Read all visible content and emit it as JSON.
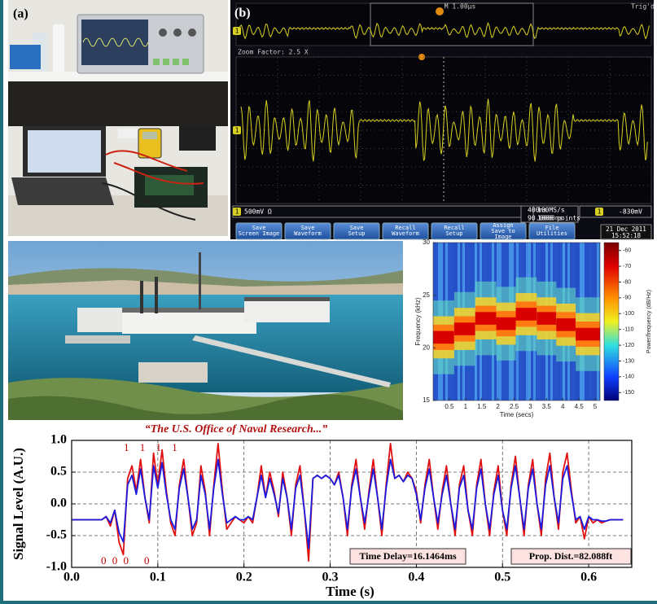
{
  "panel_a": {
    "label": "(a)"
  },
  "scope": {
    "label": "(b)",
    "timebase": "M 1.00µs",
    "trigger": "Trig'd",
    "channel": "1",
    "zoom": "Zoom Factor: 2.5 X",
    "volts": "500mV Ω",
    "zoom_time": "400ns",
    "delay": "90.0000ns",
    "rate": "100MS/s",
    "points": "1000 points",
    "trig_level": "-830mV",
    "buttons": [
      [
        "Save",
        "Screen Image"
      ],
      [
        "Save",
        "Waveform"
      ],
      [
        "Save",
        "Setup"
      ],
      [
        "Recall",
        "Waveform"
      ],
      [
        "Recall",
        "Setup"
      ],
      [
        "Assign",
        "Save to",
        "Image"
      ],
      [
        "File",
        "Utilities"
      ]
    ],
    "date": "21 Dec 2011",
    "time": "15:52:18"
  },
  "chart_data": [
    {
      "type": "spectrogram",
      "xlabel": "Time (secs)",
      "ylabel": "Frequency (kHz)",
      "colorbar_label": "Power/frequency (dB/Hz)",
      "xlim": [
        0,
        5.15
      ],
      "xticks": [
        0.5,
        1,
        1.5,
        2,
        2.5,
        3,
        3.5,
        4,
        4.5,
        5
      ],
      "ylim": [
        15,
        30
      ],
      "yticks": [
        15,
        20,
        25,
        30
      ],
      "clim": [
        -155,
        -55
      ],
      "cticks": [
        -60,
        -70,
        -80,
        -90,
        -100,
        -110,
        -120,
        -130,
        -140,
        -150
      ]
    },
    {
      "type": "line",
      "title": "“The U.S. Office of Naval Research...”",
      "xlabel": "Time (s)",
      "ylabel": "Signal Level (A.U.)",
      "xlim": [
        0,
        0.65
      ],
      "ylim": [
        -1,
        1
      ],
      "xticks": [
        {
          "value": 0,
          "label": "0.0"
        },
        0.1,
        0.2,
        0.3,
        0.4,
        0.5,
        0.6
      ],
      "yticks": [
        {
          "value": -1,
          "label": "-1.0"
        },
        -0.5,
        {
          "value": 0,
          "label": "0.0"
        },
        0.5,
        {
          "value": 1,
          "label": "1.0"
        }
      ],
      "grid": true,
      "annotations": [
        "1 1 1 1",
        "0 0 0",
        "0",
        "Time Delay=16.1464ms",
        "Prop. Dist.=82.088ft"
      ],
      "x": [
        0,
        0.005,
        0.01,
        0.015,
        0.02,
        0.025,
        0.03,
        0.035,
        0.04,
        0.045,
        0.05,
        0.055,
        0.06,
        0.065,
        0.07,
        0.075,
        0.08,
        0.085,
        0.09,
        0.095,
        0.1,
        0.105,
        0.11,
        0.115,
        0.12,
        0.125,
        0.13,
        0.135,
        0.14,
        0.145,
        0.15,
        0.155,
        0.16,
        0.165,
        0.17,
        0.175,
        0.18,
        0.185,
        0.19,
        0.195,
        0.2,
        0.205,
        0.21,
        0.215,
        0.22,
        0.225,
        0.23,
        0.235,
        0.24,
        0.245,
        0.25,
        0.255,
        0.26,
        0.265,
        0.27,
        0.275,
        0.28,
        0.285,
        0.29,
        0.295,
        0.3,
        0.305,
        0.31,
        0.315,
        0.32,
        0.325,
        0.33,
        0.335,
        0.34,
        0.345,
        0.35,
        0.355,
        0.36,
        0.365,
        0.37,
        0.375,
        0.38,
        0.385,
        0.39,
        0.395,
        0.4,
        0.405,
        0.41,
        0.415,
        0.42,
        0.425,
        0.43,
        0.435,
        0.44,
        0.445,
        0.45,
        0.455,
        0.46,
        0.465,
        0.47,
        0.475,
        0.48,
        0.485,
        0.49,
        0.495,
        0.5,
        0.505,
        0.51,
        0.515,
        0.52,
        0.525,
        0.53,
        0.535,
        0.54,
        0.545,
        0.55,
        0.555,
        0.56,
        0.565,
        0.57,
        0.575,
        0.58,
        0.585,
        0.59,
        0.595,
        0.6,
        0.605,
        0.61,
        0.615,
        0.62,
        0.625,
        0.63,
        0.635,
        0.64
      ],
      "series": [
        {
          "color": "#e01010",
          "values": [
            -0.25,
            -0.25,
            -0.25,
            -0.25,
            -0.25,
            -0.25,
            -0.25,
            -0.25,
            -0.2,
            -0.35,
            -0.1,
            -0.6,
            -0.8,
            0.4,
            0.6,
            0.2,
            0.7,
            0.1,
            -0.3,
            0.8,
            0.3,
            0.85,
            0.2,
            -0.3,
            -0.5,
            0.3,
            0.7,
            0.1,
            -0.5,
            -0.3,
            0.6,
            0.2,
            -0.5,
            0.3,
            0.95,
            0.2,
            -0.4,
            -0.3,
            -0.2,
            -0.25,
            -0.3,
            -0.2,
            -0.3,
            0.1,
            0.6,
            0.1,
            0.5,
            0.2,
            -0.2,
            0.5,
            0.1,
            -0.5,
            0.3,
            0.6,
            -0.1,
            -0.9,
            0.4,
            0.45,
            0.4,
            0.45,
            0.4,
            0.3,
            0.5,
            0.1,
            -0.5,
            0.3,
            0.7,
            0.1,
            -0.4,
            0.2,
            0.7,
            0.1,
            -0.5,
            0.3,
            0.95,
            0.4,
            0.45,
            0.35,
            0.5,
            0.4,
            0.2,
            -0.3,
            0.3,
            0.7,
            0.1,
            -0.4,
            0.2,
            0.6,
            0.0,
            -0.5,
            0.3,
            0.6,
            -0.1,
            -0.5,
            0.3,
            0.7,
            0.0,
            -0.5,
            0.2,
            0.6,
            -0.1,
            -0.5,
            0.3,
            0.75,
            0.1,
            -0.5,
            0.3,
            0.7,
            0.0,
            -0.5,
            0.4,
            0.8,
            0.1,
            -0.4,
            0.5,
            0.8,
            0.2,
            -0.3,
            -0.2,
            -0.55,
            -0.2,
            -0.3,
            -0.25,
            -0.3,
            -0.27,
            -0.25,
            -0.25,
            -0.25,
            -0.25
          ]
        },
        {
          "color": "#1a1ae0",
          "values": [
            -0.25,
            -0.25,
            -0.25,
            -0.25,
            -0.25,
            -0.25,
            -0.25,
            -0.25,
            -0.2,
            -0.3,
            -0.1,
            -0.45,
            -0.6,
            0.3,
            0.45,
            0.15,
            0.55,
            0.1,
            -0.25,
            0.6,
            0.25,
            0.65,
            0.15,
            -0.25,
            -0.4,
            0.25,
            0.55,
            0.1,
            -0.4,
            -0.25,
            0.45,
            0.15,
            -0.4,
            0.25,
            0.7,
            0.15,
            -0.3,
            -0.25,
            -0.2,
            -0.25,
            -0.25,
            -0.2,
            -0.25,
            0.1,
            0.45,
            0.1,
            0.4,
            0.15,
            -0.15,
            0.4,
            0.1,
            -0.4,
            0.25,
            0.45,
            -0.1,
            -0.7,
            0.4,
            0.45,
            0.4,
            0.45,
            0.4,
            0.3,
            0.45,
            0.1,
            -0.4,
            0.25,
            0.55,
            0.1,
            -0.3,
            0.15,
            0.55,
            0.1,
            -0.4,
            0.25,
            0.7,
            0.4,
            0.45,
            0.35,
            0.45,
            0.4,
            0.15,
            -0.25,
            0.25,
            0.55,
            0.1,
            -0.3,
            0.15,
            0.45,
            0.0,
            -0.4,
            0.25,
            0.45,
            -0.1,
            -0.4,
            0.25,
            0.55,
            0.0,
            -0.4,
            0.15,
            0.45,
            -0.1,
            -0.4,
            0.25,
            0.6,
            0.1,
            -0.4,
            0.25,
            0.55,
            0.0,
            -0.4,
            0.3,
            0.6,
            0.1,
            -0.3,
            0.4,
            0.6,
            0.15,
            -0.25,
            -0.2,
            -0.4,
            -0.2,
            -0.25,
            -0.25,
            -0.27,
            -0.27,
            -0.25,
            -0.25,
            -0.25,
            -0.25
          ]
        }
      ]
    }
  ]
}
